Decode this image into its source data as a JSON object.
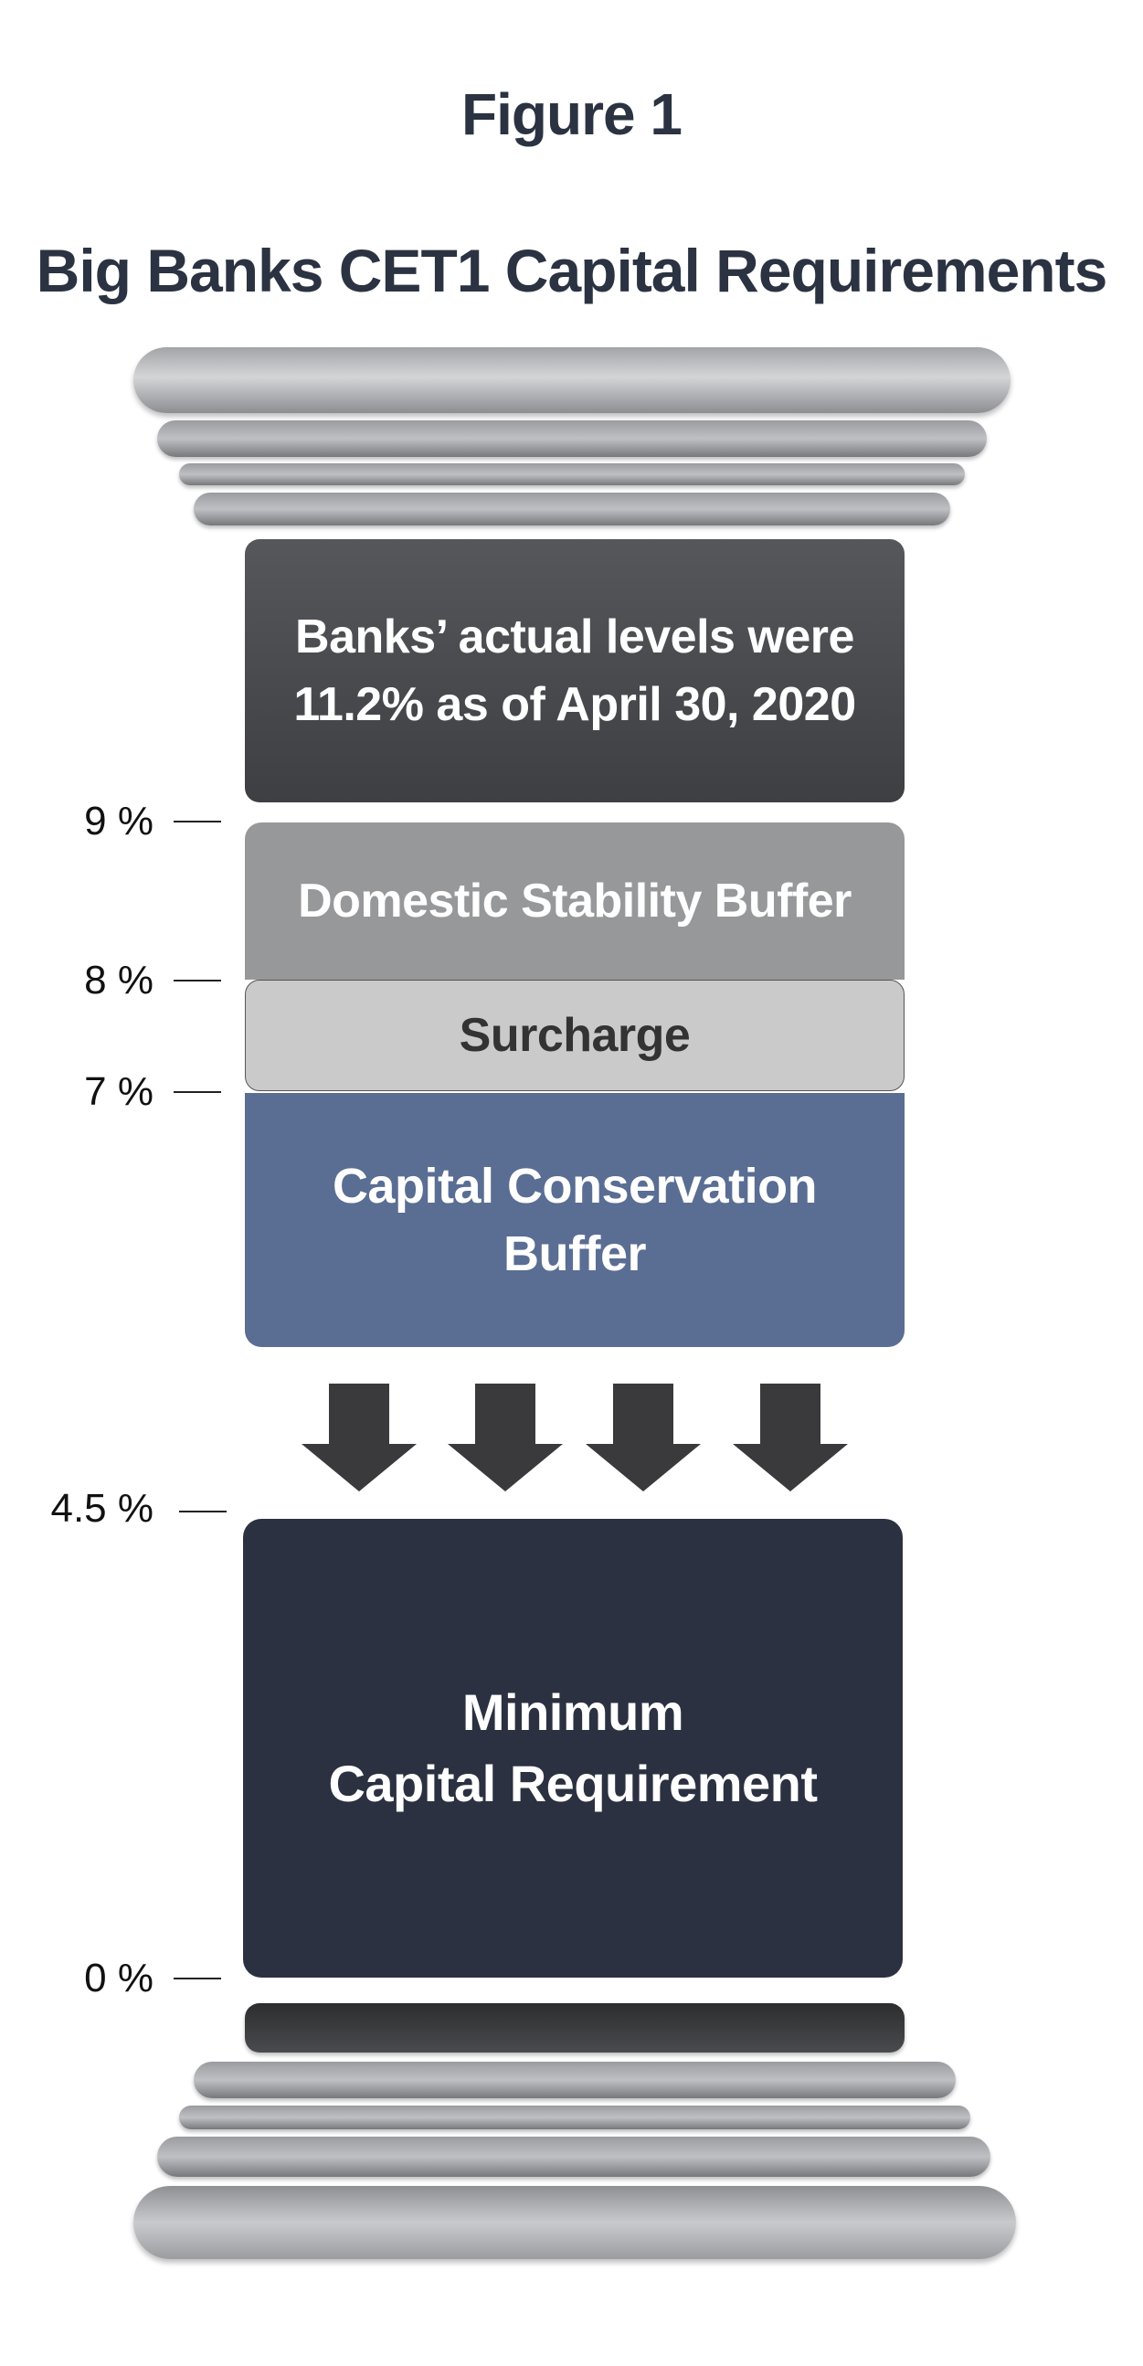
{
  "figure_label": "Figure 1",
  "title": "Big Banks CET1 Capital Requirements",
  "blocks": {
    "actual_line1": "Banks’ actual levels were",
    "actual_bold": "11.2%",
    "actual_rest": " as of April 30, 2020",
    "domestic": "Domestic Stability Buffer",
    "surcharge": "Surcharge",
    "conservation_line1": "Capital Conservation",
    "conservation_line2": "Buffer",
    "minimum_line1": "Minimum",
    "minimum_line2": "Capital Requirement"
  },
  "ticks": {
    "t9": "9 %",
    "t8": "8 %",
    "t7": "7 %",
    "t45": "4.5 %",
    "t0": "0 %"
  },
  "colors": {
    "title": "#2b3342",
    "actual": "#434548",
    "domestic": "#979899",
    "surcharge": "#cacaca",
    "conservation": "#5a6d93",
    "minimum": "#2b3140",
    "arrow": "#3a3a3c"
  }
}
